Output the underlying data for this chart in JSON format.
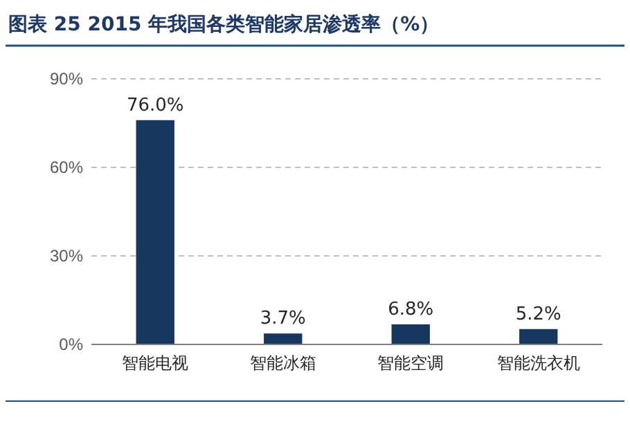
{
  "chart_data": {
    "type": "bar",
    "title": "图表 25 2015 年我国各类智能家居渗透率（%）",
    "categories": [
      "智能电视",
      "智能冰箱",
      "智能空调",
      "智能洗衣机"
    ],
    "values": [
      76.0,
      3.7,
      6.8,
      5.2
    ],
    "value_labels": [
      "76.0%",
      "3.7%",
      "6.8%",
      "5.2%"
    ],
    "color": "#17375e",
    "ylim": [
      0,
      90
    ],
    "yticks": [
      {
        "value": 0,
        "label": "0%"
      },
      {
        "value": 30,
        "label": "30%"
      },
      {
        "value": 60,
        "label": "60%"
      },
      {
        "value": 90,
        "label": "90%"
      }
    ],
    "grid": "y"
  }
}
